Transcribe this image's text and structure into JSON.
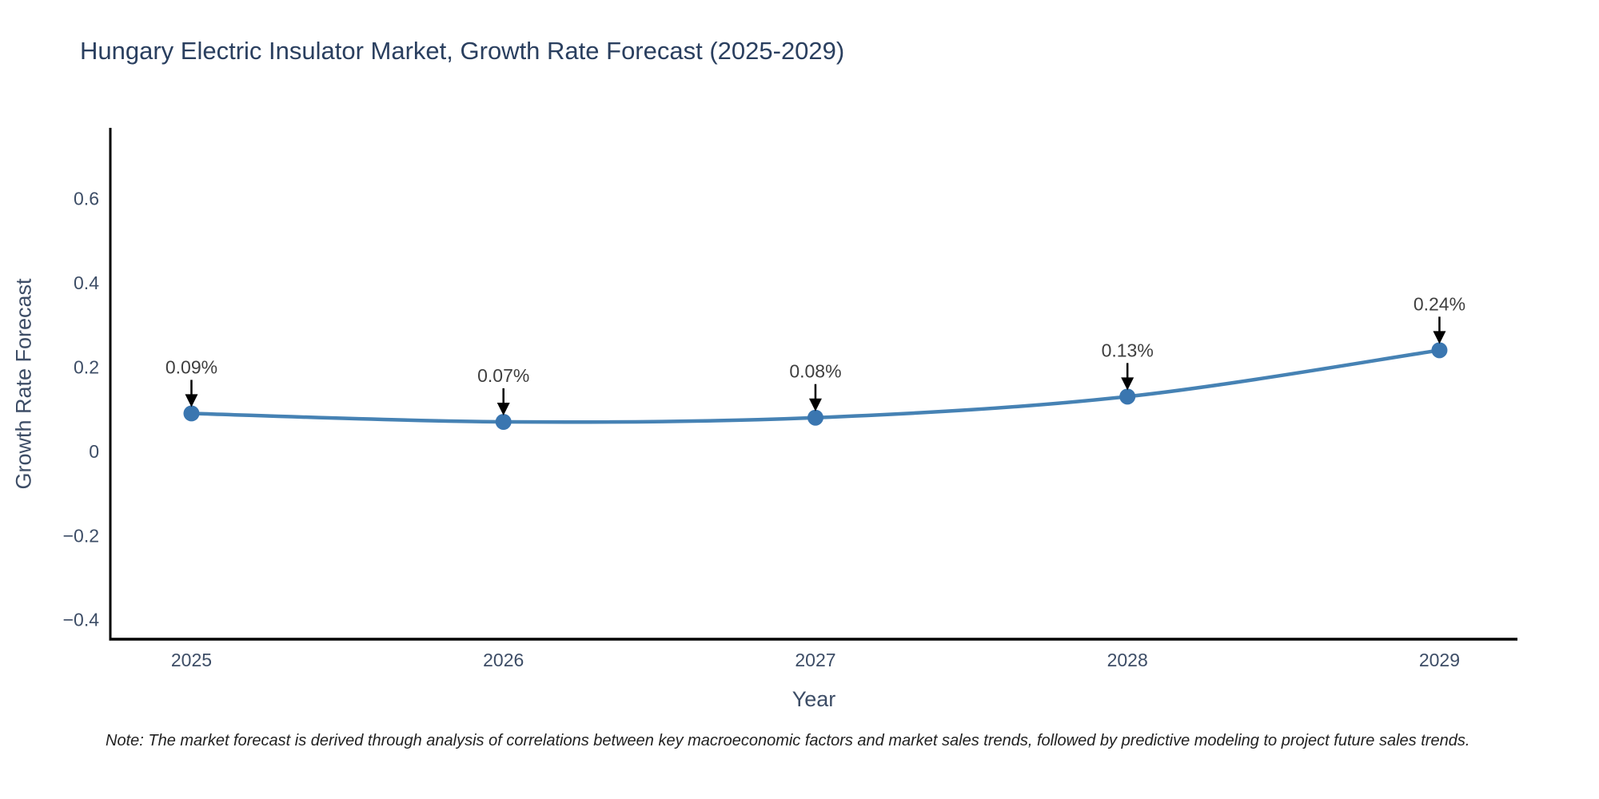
{
  "title": "Hungary Electric Insulator Market, Growth Rate Forecast (2025-2029)",
  "note": "Note: The market forecast is derived through analysis of correlations between key macroeconomic factors and market sales trends, followed by predictive modeling to project future sales trends.",
  "chart_data": {
    "type": "line",
    "title": "Hungary Electric Insulator Market, Growth Rate Forecast (2025-2029)",
    "xlabel": "Year",
    "ylabel": "Growth Rate Forecast",
    "x": [
      2025,
      2026,
      2027,
      2028,
      2029
    ],
    "values": [
      0.09,
      0.07,
      0.08,
      0.13,
      0.24
    ],
    "point_labels": [
      "0.09%",
      "0.07%",
      "0.08%",
      "0.13%",
      "0.24%"
    ],
    "x_tick_labels": [
      "2025",
      "2026",
      "2027",
      "2028",
      "2029"
    ],
    "y_ticks": {
      "values": [
        -0.4,
        -0.2,
        0,
        0.2,
        0.4,
        0.6
      ],
      "labels": [
        "−0.4",
        "−0.2",
        "0",
        "0.2",
        "0.4",
        "0.6"
      ]
    },
    "xlim": [
      2024.74,
      2029.25
    ],
    "ylim": [
      -0.446,
      0.768
    ],
    "line_shape": "spline",
    "grid": false,
    "legend_position": "none",
    "line_color": "#4682b4",
    "marker_color": "#3a76b0",
    "axis_color": "#000000",
    "tick_color": "#3d4d66",
    "title_color": "#2a3f5f",
    "annotation_arrow_color": "#000000",
    "annotation_text_color": "#3f3f3f"
  }
}
